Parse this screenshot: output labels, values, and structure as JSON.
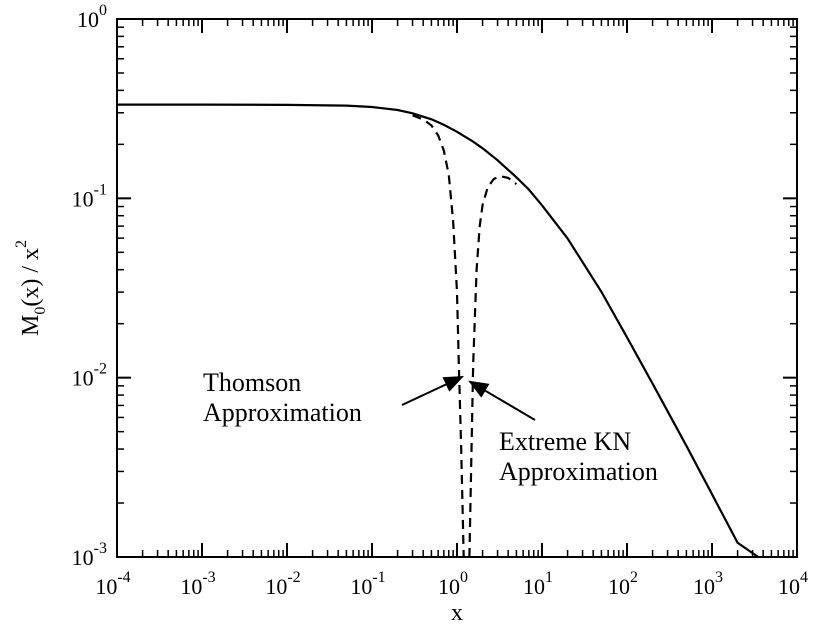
{
  "chart_data": {
    "type": "line",
    "x_scale": "log",
    "y_scale": "log",
    "xlim": [
      0.0001,
      10000
    ],
    "ylim": [
      0.001,
      1
    ],
    "xlabel": "x",
    "ylabel": {
      "base": "M",
      "sub": "0",
      "mid": "(x) / x",
      "sup": "2"
    },
    "x_ticks": [
      {
        "base": "10",
        "exp": "-4"
      },
      {
        "base": "10",
        "exp": "-3"
      },
      {
        "base": "10",
        "exp": "-2"
      },
      {
        "base": "10",
        "exp": "-1"
      },
      {
        "base": "10",
        "exp": "0"
      },
      {
        "base": "10",
        "exp": "1"
      },
      {
        "base": "10",
        "exp": "2"
      },
      {
        "base": "10",
        "exp": "3"
      },
      {
        "base": "10",
        "exp": "4"
      }
    ],
    "y_ticks": [
      {
        "base": "10",
        "exp": "-3"
      },
      {
        "base": "10",
        "exp": "-2"
      },
      {
        "base": "10",
        "exp": "-1"
      },
      {
        "base": "10",
        "exp": "0"
      }
    ],
    "grid": false,
    "series": [
      {
        "style": "solid",
        "x": [
          0.0001,
          0.001,
          0.01,
          0.05,
          0.1,
          0.2,
          0.3,
          0.5,
          0.7,
          1.0,
          1.5,
          2,
          3,
          5,
          7,
          10,
          20,
          50,
          100,
          200,
          500,
          1000,
          2000,
          3500
        ],
        "y": [
          0.333,
          0.333,
          0.332,
          0.329,
          0.323,
          0.311,
          0.298,
          0.276,
          0.257,
          0.235,
          0.209,
          0.19,
          0.163,
          0.131,
          0.112,
          0.0915,
          0.0597,
          0.0301,
          0.0168,
          0.00925,
          0.00417,
          0.00224,
          0.0012,
          0.00069
        ]
      },
      {
        "style": "dashed",
        "x": [
          0.3,
          0.4,
          0.5,
          0.6,
          0.7,
          0.8,
          0.9,
          1.0,
          1.05,
          1.12,
          1.2
        ],
        "y": [
          0.29,
          0.275,
          0.255,
          0.225,
          0.185,
          0.135,
          0.075,
          0.03,
          0.012,
          0.004,
          0.001
        ]
      },
      {
        "style": "dashed",
        "x": [
          1.4,
          1.55,
          1.7,
          1.85,
          2.0,
          2.3,
          2.7,
          3.2,
          4.0,
          5.0
        ],
        "y": [
          0.001,
          0.012,
          0.04,
          0.07,
          0.092,
          0.115,
          0.128,
          0.133,
          0.13,
          0.12
        ]
      }
    ],
    "annotations": [
      {
        "lines": [
          "Thomson",
          "Approximation"
        ],
        "arrow_to": [
          1.15,
          0.0101
        ]
      },
      {
        "lines": [
          "Extreme KN",
          "Approximation"
        ],
        "arrow_to": [
          1.42,
          0.0095
        ]
      }
    ]
  }
}
